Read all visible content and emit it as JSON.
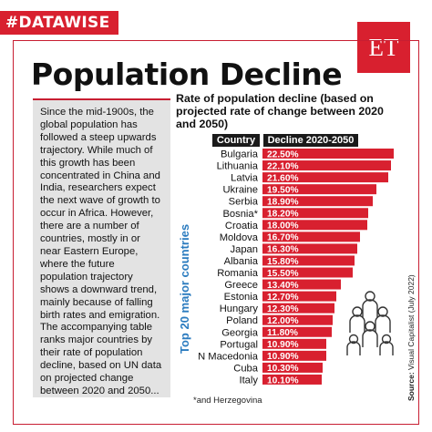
{
  "brand": {
    "tag": "#DATAWISE",
    "logo": "ET",
    "accent": "#d8202f"
  },
  "page_title": "Population Decline",
  "intro": "Since the mid-1900s, the global population has followed a steep upwards trajectory. While much of this growth has been concentrated in China and India, researchers expect the next wave of growth to occur in Africa. However, there are a number of countries, mostly in or near Eastern Europe, where the future population trajectory shows a downward trend, mainly because of falling birth rates and emigration. The accompanying table ranks major countries by their rate of population decline, based on UN data on projected change between 2020 and 2050...",
  "footnote": "*and Herzegovina",
  "source": {
    "label": "Source:",
    "text": "Visual Capitalist (July 2022)"
  },
  "chart_data": {
    "type": "bar",
    "orientation": "horizontal",
    "title": "Rate of population decline (based on projected rate of change between 2020 and 2050)",
    "ylabel": "Top 20 major countries",
    "column_headers": [
      "Country",
      "Decline 2020-2050"
    ],
    "categories": [
      "Bulgaria",
      "Lithuania",
      "Latvia",
      "Ukraine",
      "Serbia",
      "Bosnia*",
      "Croatia",
      "Moldova",
      "Japan",
      "Albania",
      "Romania",
      "Greece",
      "Estonia",
      "Hungary",
      "Poland",
      "Georgia",
      "Portugal",
      "N Macedonia",
      "Cuba",
      "Italy"
    ],
    "values": [
      22.5,
      22.1,
      21.6,
      19.5,
      18.9,
      18.2,
      18.0,
      16.7,
      16.3,
      15.8,
      15.5,
      13.4,
      12.7,
      12.3,
      12.0,
      11.8,
      10.9,
      10.9,
      10.3,
      10.1
    ],
    "value_labels": [
      "22.50%",
      "22.10%",
      "21.60%",
      "19.50%",
      "18.90%",
      "18.20%",
      "18.00%",
      "16.70%",
      "16.30%",
      "15.80%",
      "15.50%",
      "13.40%",
      "12.70%",
      "12.30%",
      "12.00%",
      "11.80%",
      "10.90%",
      "10.90%",
      "10.30%",
      "10.10%"
    ],
    "bar_color": "#d8202f",
    "grid": false
  }
}
